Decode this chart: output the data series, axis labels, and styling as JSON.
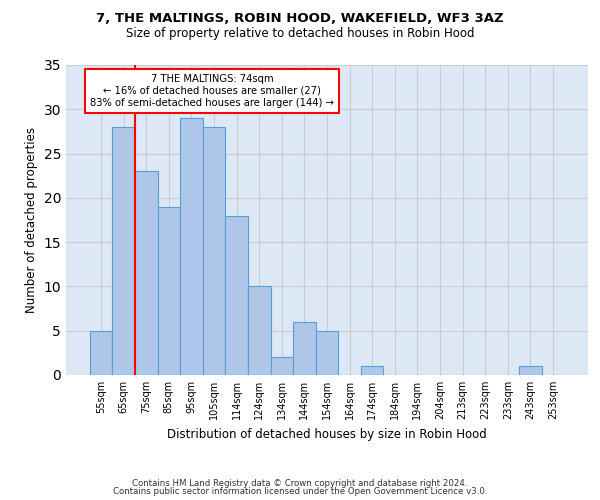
{
  "title": "7, THE MALTINGS, ROBIN HOOD, WAKEFIELD, WF3 3AZ",
  "subtitle": "Size of property relative to detached houses in Robin Hood",
  "xlabel": "Distribution of detached houses by size in Robin Hood",
  "ylabel": "Number of detached properties",
  "categories": [
    "55sqm",
    "65sqm",
    "75sqm",
    "85sqm",
    "95sqm",
    "105sqm",
    "114sqm",
    "124sqm",
    "134sqm",
    "144sqm",
    "154sqm",
    "164sqm",
    "174sqm",
    "184sqm",
    "194sqm",
    "204sqm",
    "213sqm",
    "223sqm",
    "233sqm",
    "243sqm",
    "253sqm"
  ],
  "values": [
    5,
    28,
    23,
    19,
    29,
    28,
    18,
    10,
    2,
    6,
    5,
    0,
    1,
    0,
    0,
    0,
    0,
    0,
    0,
    1,
    0
  ],
  "bar_color": "#aec6e8",
  "bar_edge_color": "#5a9fd4",
  "annotation_line1": "7 THE MALTINGS: 74sqm",
  "annotation_line2": "← 16% of detached houses are smaller (27)",
  "annotation_line3": "83% of semi-detached houses are larger (144) →",
  "annotation_box_color": "white",
  "annotation_box_edge_color": "red",
  "ylim": [
    0,
    35
  ],
  "yticks": [
    0,
    5,
    10,
    15,
    20,
    25,
    30,
    35
  ],
  "grid_color": "#cccccc",
  "background_color": "#dce8f5",
  "footer1": "Contains HM Land Registry data © Crown copyright and database right 2024.",
  "footer2": "Contains public sector information licensed under the Open Government Licence v3.0."
}
